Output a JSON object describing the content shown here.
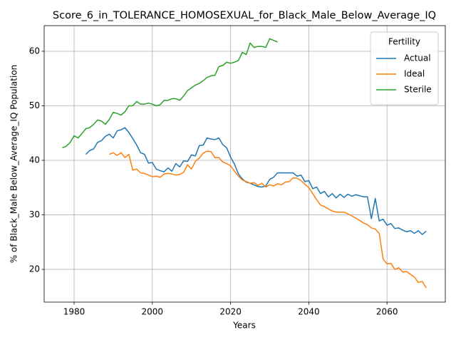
{
  "chart_data": {
    "type": "line",
    "title": "Score_6_in_TOLERANCE_HOMOSEXUAL_for_Black_Male_Below_Average_IQ",
    "x_label": "Years",
    "y_label": "% of Black_Male Below_Average_IQ Population",
    "legend_title": "Fertility",
    "legend_position": "upper right",
    "grid": true,
    "xlim": [
      1972.35,
      2074.9
    ],
    "ylim": [
      14,
      64.7
    ],
    "xticks": [
      1980,
      2000,
      2020,
      2040,
      2060
    ],
    "yticks": [
      20,
      30,
      40,
      50,
      60
    ],
    "series": [
      {
        "name": "Actual",
        "color": "#1f77b4",
        "x": [
          1983,
          1984,
          1985,
          1986,
          1987,
          1988,
          1989,
          1990,
          1991,
          1992,
          1993,
          1994,
          1995,
          1996,
          1997,
          1998,
          1999,
          2000,
          2001,
          2002,
          2003,
          2004,
          2005,
          2006,
          2007,
          2008,
          2009,
          2010,
          2011,
          2012,
          2013,
          2014,
          2015,
          2016,
          2017,
          2018,
          2019,
          2020,
          2021,
          2022,
          2023,
          2024,
          2025,
          2026,
          2027,
          2028,
          2029,
          2030,
          2031,
          2032,
          2033,
          2034,
          2035,
          2036,
          2037,
          2038,
          2039,
          2040,
          2041,
          2042,
          2043,
          2044,
          2045,
          2046,
          2047,
          2048,
          2049,
          2050,
          2051,
          2052,
          2053,
          2054,
          2055,
          2056,
          2057,
          2058,
          2059,
          2060,
          2061,
          2062,
          2063,
          2064,
          2065,
          2066,
          2067,
          2068,
          2069,
          2070
        ],
        "values": [
          41.1,
          41.8,
          42.1,
          43.3,
          43.6,
          44.4,
          44.8,
          44.1,
          45.4,
          45.6,
          46.0,
          45.1,
          44.0,
          42.8,
          41.4,
          41.1,
          39.5,
          39.6,
          38.4,
          38.1,
          37.9,
          38.6,
          38.0,
          39.4,
          38.8,
          39.9,
          39.8,
          41.0,
          40.8,
          42.7,
          42.8,
          44.1,
          43.9,
          43.8,
          44.1,
          42.9,
          42.3,
          40.6,
          39.3,
          37.5,
          36.6,
          36.0,
          35.8,
          35.5,
          35.2,
          35.1,
          35.3,
          36.5,
          36.9,
          37.7,
          37.7,
          37.7,
          37.7,
          37.7,
          37.1,
          37.3,
          36.1,
          36.3,
          34.8,
          35.1,
          33.9,
          34.3,
          33.3,
          33.9,
          33.1,
          33.8,
          33.2,
          33.8,
          33.4,
          33.7,
          33.5,
          33.3,
          33.3,
          29.3,
          33.0,
          28.9,
          29.2,
          28.1,
          28.4,
          27.5,
          27.6,
          27.2,
          26.9,
          27.1,
          26.6,
          27.1,
          26.4,
          27.0
        ]
      },
      {
        "name": "Ideal",
        "color": "#ff7f0e",
        "x": [
          1989,
          1990,
          1991,
          1992,
          1993,
          1994,
          1995,
          1996,
          1997,
          1998,
          1999,
          2000,
          2001,
          2002,
          2003,
          2004,
          2005,
          2006,
          2007,
          2008,
          2009,
          2010,
          2011,
          2012,
          2013,
          2014,
          2015,
          2016,
          2017,
          2018,
          2019,
          2020,
          2021,
          2022,
          2023,
          2024,
          2025,
          2026,
          2027,
          2028,
          2029,
          2030,
          2031,
          2032,
          2033,
          2034,
          2035,
          2036,
          2037,
          2038,
          2039,
          2040,
          2041,
          2042,
          2043,
          2044,
          2045,
          2046,
          2047,
          2048,
          2049,
          2050,
          2051,
          2052,
          2053,
          2054,
          2055,
          2056,
          2057,
          2058,
          2059,
          2060,
          2061,
          2062,
          2063,
          2064,
          2065,
          2066,
          2067,
          2068,
          2069,
          2070
        ],
        "values": [
          41.1,
          41.4,
          40.9,
          41.4,
          40.5,
          41.1,
          38.2,
          38.4,
          37.7,
          37.6,
          37.3,
          37.0,
          37.1,
          36.9,
          37.5,
          37.6,
          37.5,
          37.3,
          37.4,
          37.8,
          39.2,
          38.4,
          39.8,
          40.4,
          41.3,
          41.7,
          41.6,
          40.5,
          40.5,
          39.7,
          39.4,
          39.0,
          38.0,
          37.1,
          36.4,
          36.1,
          35.8,
          35.9,
          35.4,
          35.8,
          35.1,
          35.5,
          35.3,
          35.7,
          35.5,
          36.0,
          36.1,
          36.8,
          36.7,
          36.3,
          35.6,
          35.0,
          33.9,
          32.8,
          31.8,
          31.5,
          31.1,
          30.7,
          30.5,
          30.5,
          30.5,
          30.2,
          29.8,
          29.4,
          29.0,
          28.5,
          28.2,
          27.6,
          27.4,
          26.6,
          21.9,
          21.0,
          21.1,
          20.0,
          20.3,
          19.5,
          19.6,
          19.1,
          18.6,
          17.6,
          17.8,
          16.6
        ]
      },
      {
        "name": "Sterile",
        "color": "#2ca02c",
        "x": [
          1977,
          1978,
          1979,
          1980,
          1981,
          1982,
          1983,
          1984,
          1985,
          1986,
          1987,
          1988,
          1989,
          1990,
          1991,
          1992,
          1993,
          1994,
          1995,
          1996,
          1997,
          1998,
          1999,
          2000,
          2001,
          2002,
          2003,
          2004,
          2005,
          2006,
          2007,
          2008,
          2009,
          2010,
          2011,
          2012,
          2013,
          2014,
          2015,
          2016,
          2017,
          2018,
          2019,
          2020,
          2021,
          2022,
          2023,
          2024,
          2025,
          2026,
          2027,
          2028,
          2029,
          2030,
          2031,
          2032
        ],
        "values": [
          42.3,
          42.6,
          43.3,
          44.5,
          44.1,
          44.9,
          45.8,
          46.0,
          46.6,
          47.4,
          47.2,
          46.6,
          47.5,
          48.8,
          48.6,
          48.3,
          48.9,
          50.0,
          50.0,
          50.8,
          50.3,
          50.3,
          50.5,
          50.3,
          50.0,
          50.2,
          51.0,
          51.0,
          51.3,
          51.3,
          51.0,
          51.8,
          52.8,
          53.3,
          53.8,
          54.1,
          54.6,
          55.2,
          55.5,
          55.6,
          57.2,
          57.4,
          58.0,
          57.8,
          58.0,
          58.3,
          59.8,
          59.4,
          61.5,
          60.7,
          60.9,
          60.9,
          60.7,
          62.3,
          62.0,
          61.7
        ]
      }
    ]
  }
}
